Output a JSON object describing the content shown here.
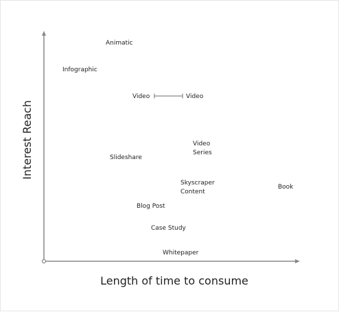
{
  "axes": {
    "x_title": "Length of time to consume",
    "y_title": "Interest Reach",
    "color": "#888888"
  },
  "items": [
    {
      "id": "animatic",
      "lines": [
        "Animatic"
      ]
    },
    {
      "id": "infographic",
      "lines": [
        "Infographic"
      ]
    },
    {
      "id": "video-short",
      "lines": [
        "Video"
      ]
    },
    {
      "id": "video-long",
      "lines": [
        "Video"
      ]
    },
    {
      "id": "video-series",
      "lines": [
        "Video",
        "Series"
      ]
    },
    {
      "id": "slideshare",
      "lines": [
        "Slideshare"
      ]
    },
    {
      "id": "skyscraper-content",
      "lines": [
        "Skyscraper",
        "Content"
      ]
    },
    {
      "id": "book",
      "lines": [
        "Book"
      ]
    },
    {
      "id": "blog-post",
      "lines": [
        "Blog Post"
      ]
    },
    {
      "id": "case-study",
      "lines": [
        "Case Study"
      ]
    },
    {
      "id": "whitepaper",
      "lines": [
        "Whitepaper"
      ]
    }
  ],
  "connector": {
    "from": "video-short",
    "to": "video-long",
    "color": "#888888"
  }
}
